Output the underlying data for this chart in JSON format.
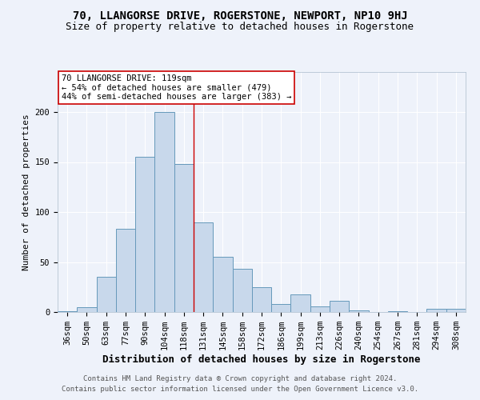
{
  "title": "70, LLANGORSE DRIVE, ROGERSTONE, NEWPORT, NP10 9HJ",
  "subtitle": "Size of property relative to detached houses in Rogerstone",
  "xlabel": "Distribution of detached houses by size in Rogerstone",
  "ylabel": "Number of detached properties",
  "categories": [
    "36sqm",
    "50sqm",
    "63sqm",
    "77sqm",
    "90sqm",
    "104sqm",
    "118sqm",
    "131sqm",
    "145sqm",
    "158sqm",
    "172sqm",
    "186sqm",
    "199sqm",
    "213sqm",
    "226sqm",
    "240sqm",
    "254sqm",
    "267sqm",
    "281sqm",
    "294sqm",
    "308sqm"
  ],
  "values": [
    1,
    5,
    35,
    83,
    155,
    200,
    148,
    90,
    55,
    43,
    25,
    8,
    18,
    6,
    11,
    2,
    0,
    1,
    0,
    3,
    3
  ],
  "bar_color": "#c8d8eb",
  "bar_edge_color": "#6699bb",
  "background_color": "#eef2fa",
  "grid_color": "#ffffff",
  "vline_x_index": 6,
  "vline_color": "#cc0000",
  "annotation_text": "70 LLANGORSE DRIVE: 119sqm\n← 54% of detached houses are smaller (479)\n44% of semi-detached houses are larger (383) →",
  "annotation_box_color": "#ffffff",
  "annotation_box_edge": "#cc0000",
  "footer1": "Contains HM Land Registry data ® Crown copyright and database right 2024.",
  "footer2": "Contains public sector information licensed under the Open Government Licence v3.0.",
  "ylim": [
    0,
    240
  ],
  "title_fontsize": 10,
  "subtitle_fontsize": 9,
  "xlabel_fontsize": 9,
  "ylabel_fontsize": 8,
  "tick_fontsize": 7.5,
  "footer_fontsize": 6.5,
  "annotation_fontsize": 7.5
}
